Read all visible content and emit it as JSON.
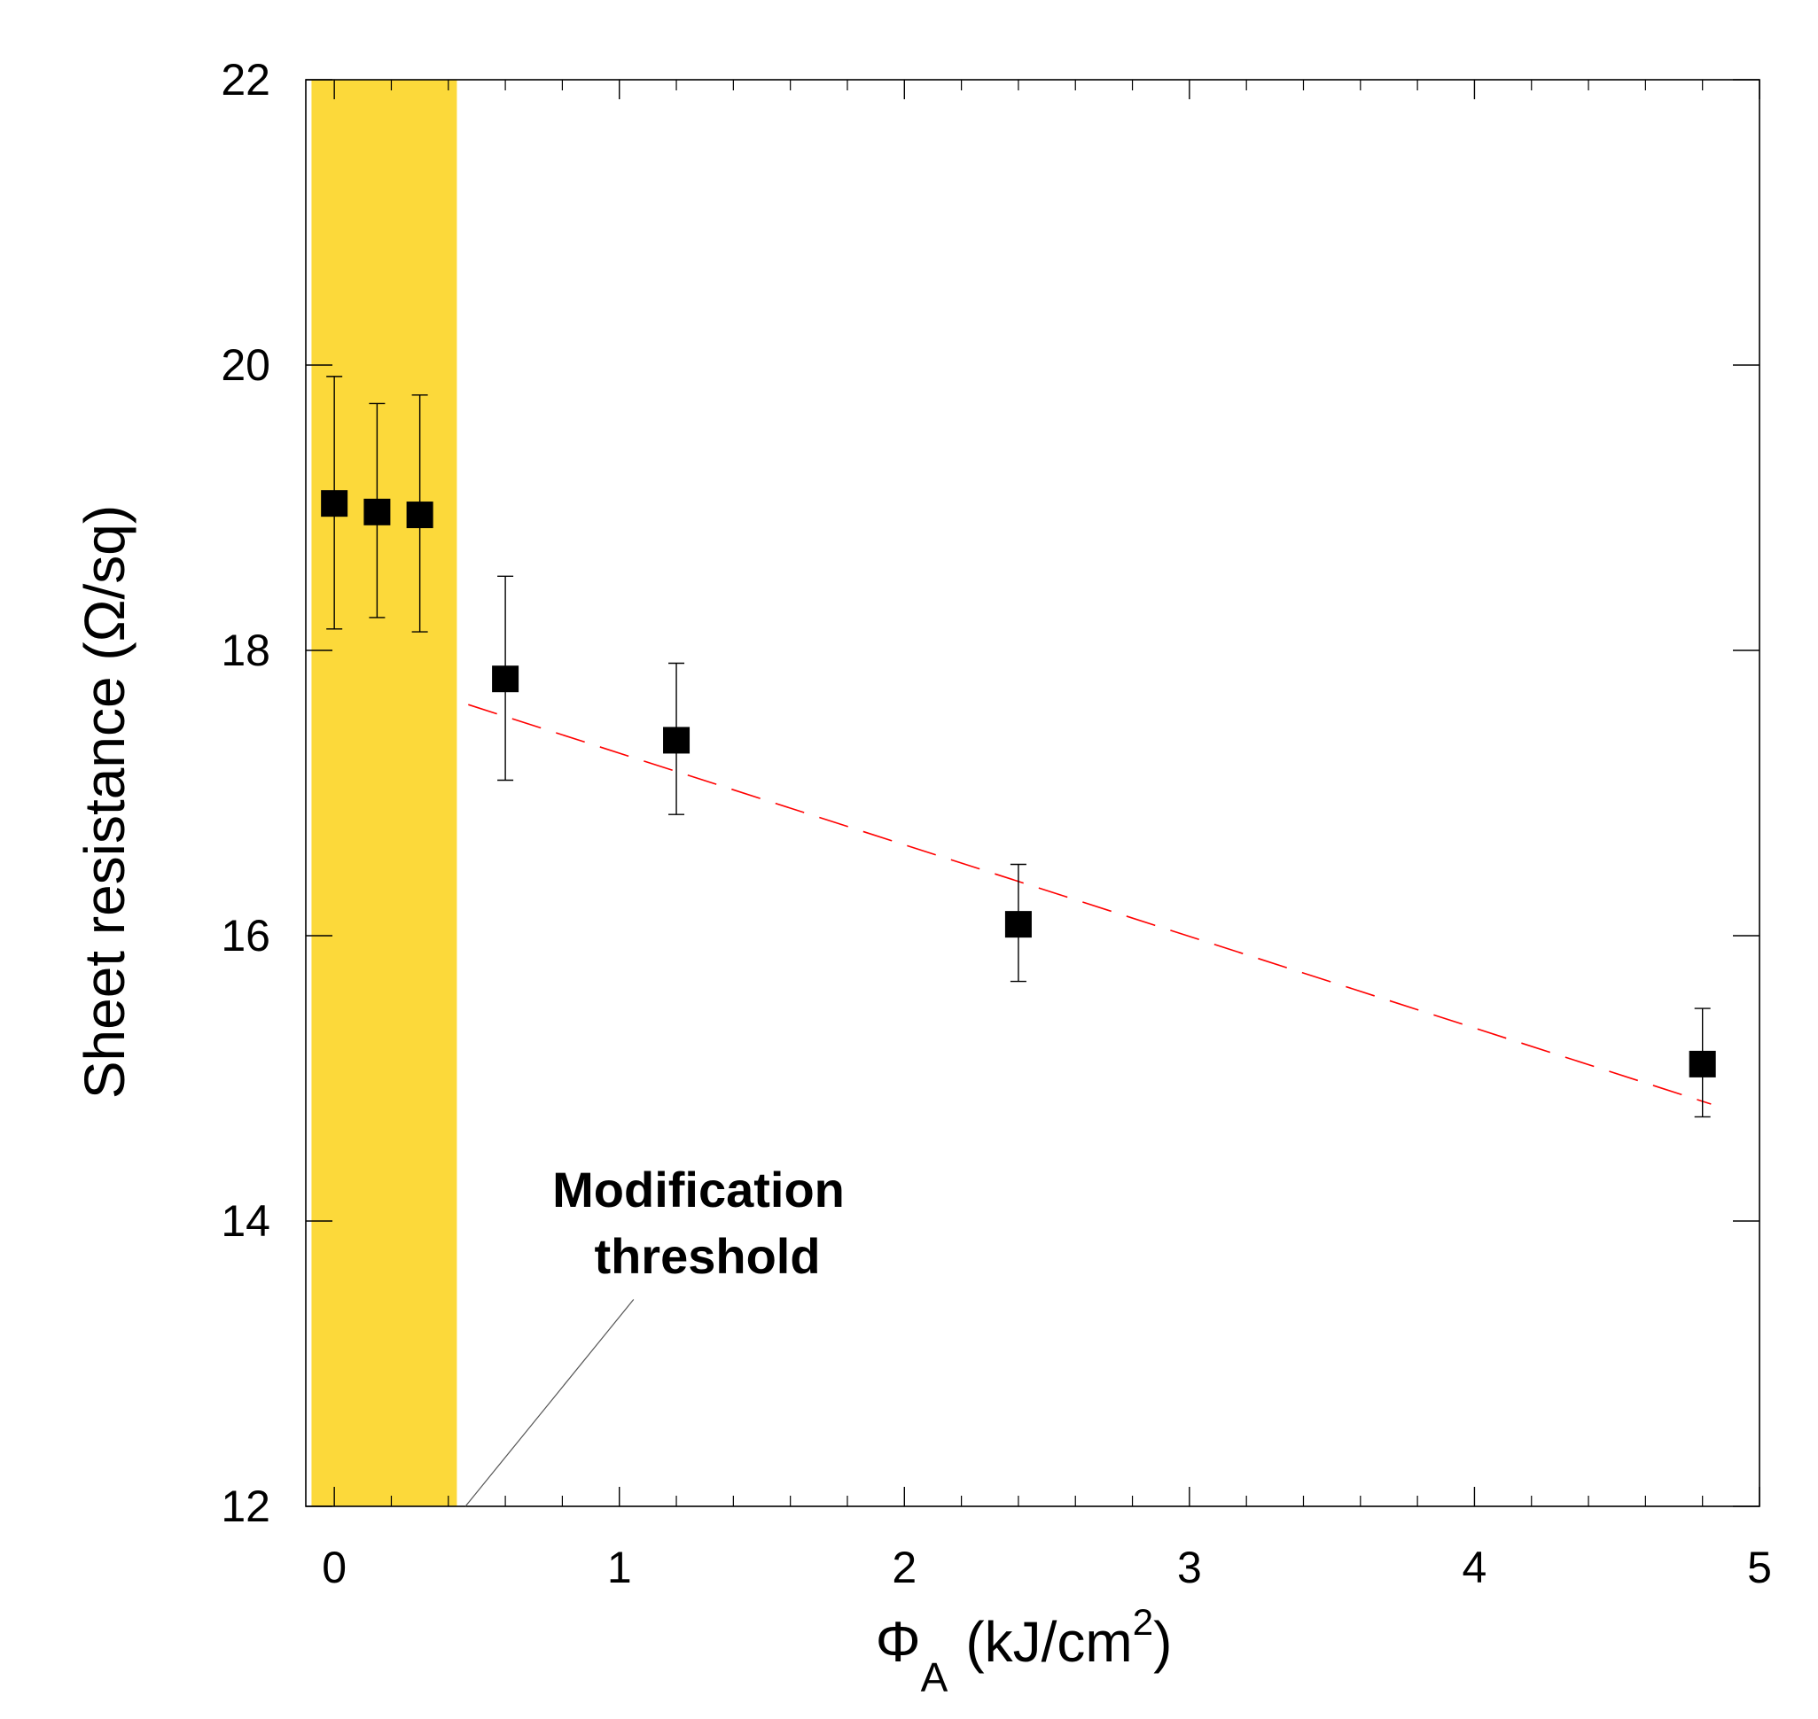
{
  "chart_data": {
    "type": "scatter",
    "title": "",
    "xlabel": {
      "symbol": "Φ",
      "subscript": "A",
      "unit_pre": "(kJ/cm",
      "unit_sup": "2",
      "unit_post": ")"
    },
    "ylabel": "Sheet resistance (Ω/sq)",
    "xlim": [
      -0.1,
      5
    ],
    "ylim": [
      12,
      22
    ],
    "xticks": [
      0,
      1,
      2,
      3,
      4,
      5
    ],
    "xtick_labels": [
      "0",
      "1",
      "2",
      "3",
      "4",
      "5"
    ],
    "yticks": [
      12,
      14,
      16,
      18,
      20,
      22
    ],
    "ytick_labels": [
      "12",
      "14",
      "16",
      "18",
      "20",
      "22"
    ],
    "x_minor_step": 0.2,
    "grid": false,
    "series": [
      {
        "name": "measurements",
        "marker": "square",
        "color": "#000000",
        "points": [
          {
            "x": 0.0,
            "y": 19.03,
            "err_low": 18.15,
            "err_high": 19.92
          },
          {
            "x": 0.15,
            "y": 18.97,
            "err_low": 18.23,
            "err_high": 19.73
          },
          {
            "x": 0.3,
            "y": 18.95,
            "err_low": 18.13,
            "err_high": 19.79
          },
          {
            "x": 0.6,
            "y": 17.8,
            "err_low": 17.09,
            "err_high": 18.52
          },
          {
            "x": 1.2,
            "y": 17.37,
            "err_low": 16.85,
            "err_high": 17.91
          },
          {
            "x": 2.4,
            "y": 16.08,
            "err_low": 15.68,
            "err_high": 16.5
          },
          {
            "x": 4.8,
            "y": 15.1,
            "err_low": 14.73,
            "err_high": 15.49
          }
        ]
      }
    ],
    "fit_line": {
      "style": "dashed",
      "color": "#ff0000",
      "x": [
        0.47,
        4.83
      ],
      "y": [
        17.62,
        14.82
      ]
    },
    "shaded_region": {
      "x": [
        -0.08,
        0.43
      ],
      "color": "#fcd93a"
    },
    "annotation": {
      "lines": [
        "Modification",
        "threshold"
      ],
      "pointer_to": {
        "x": 0.46,
        "y": 12.0
      },
      "pointer_from": {
        "x": 1.05,
        "y": 13.45
      }
    }
  }
}
